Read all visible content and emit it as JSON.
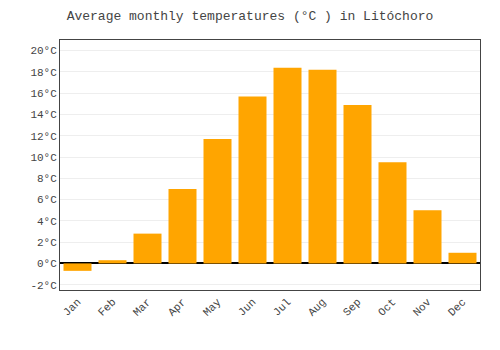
{
  "chart_data": {
    "type": "bar",
    "title": "Average monthly temperatures (°C ) in Litóchoro",
    "categories": [
      "Jan",
      "Feb",
      "Mar",
      "Apr",
      "May",
      "Jun",
      "Jul",
      "Aug",
      "Sep",
      "Oct",
      "Nov",
      "Dec"
    ],
    "values": [
      -0.7,
      0.3,
      2.8,
      7.0,
      11.7,
      15.7,
      18.4,
      18.2,
      14.9,
      9.5,
      5.0,
      1.0
    ],
    "color": "#FFA500",
    "ylim": [
      -2.5,
      21
    ],
    "yticks": [
      {
        "value": -2,
        "label": "-2°C"
      },
      {
        "value": 0,
        "label": "0°C"
      },
      {
        "value": 2,
        "label": "2°C"
      },
      {
        "value": 4,
        "label": "4°C"
      },
      {
        "value": 6,
        "label": "6°C"
      },
      {
        "value": 8,
        "label": "8°C"
      },
      {
        "value": 10,
        "label": "10°C"
      },
      {
        "value": 12,
        "label": "12°C"
      },
      {
        "value": 14,
        "label": "14°C"
      },
      {
        "value": 16,
        "label": "16°C"
      },
      {
        "value": 18,
        "label": "18°C"
      },
      {
        "value": 20,
        "label": "20°C"
      }
    ],
    "grid": true
  }
}
